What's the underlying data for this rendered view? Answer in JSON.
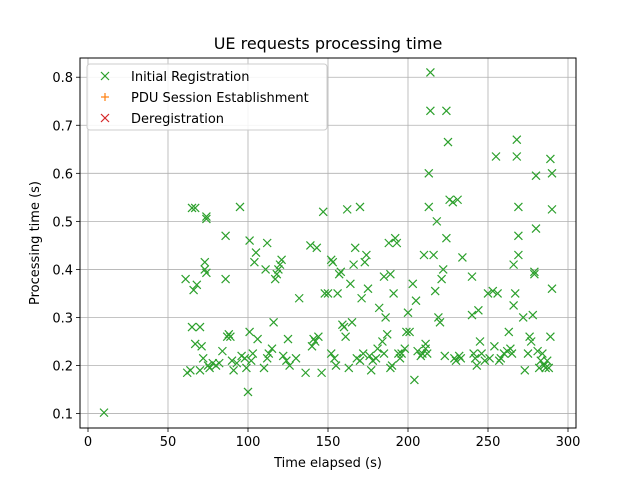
{
  "chart_data": {
    "type": "scatter",
    "title": "UE requests processing time",
    "xlabel": "Time elapsed (s)",
    "ylabel": "Processing time (s)",
    "xlim": [
      -5,
      305
    ],
    "ylim": [
      0.07,
      0.84
    ],
    "xticks": [
      0,
      50,
      100,
      150,
      200,
      250,
      300
    ],
    "yticks": [
      0.1,
      0.2,
      0.3,
      0.4,
      0.5,
      0.6,
      0.7,
      0.8
    ],
    "xtick_labels": [
      "0",
      "50",
      "100",
      "150",
      "200",
      "250",
      "300"
    ],
    "ytick_labels": [
      "0.1",
      "0.2",
      "0.3",
      "0.4",
      "0.5",
      "0.6",
      "0.7",
      "0.8"
    ],
    "grid": true,
    "legend_position": "top-left",
    "series": [
      {
        "name": "Initial Registration",
        "marker": "x",
        "color": "#2ca02c",
        "points": [
          [
            10,
            0.102
          ],
          [
            61,
            0.38
          ],
          [
            62,
            0.185
          ],
          [
            64,
            0.19
          ],
          [
            65,
            0.528
          ],
          [
            65,
            0.28
          ],
          [
            66,
            0.357
          ],
          [
            67,
            0.528
          ],
          [
            67,
            0.245
          ],
          [
            68,
            0.368
          ],
          [
            70,
            0.19
          ],
          [
            70,
            0.28
          ],
          [
            71,
            0.24
          ],
          [
            72,
            0.215
          ],
          [
            73,
            0.4
          ],
          [
            73,
            0.415
          ],
          [
            74,
            0.505
          ],
          [
            74,
            0.51
          ],
          [
            74,
            0.393
          ],
          [
            75,
            0.2
          ],
          [
            76,
            0.195
          ],
          [
            78,
            0.205
          ],
          [
            80,
            0.2
          ],
          [
            82,
            0.205
          ],
          [
            84,
            0.23
          ],
          [
            86,
            0.38
          ],
          [
            86,
            0.47
          ],
          [
            87,
            0.26
          ],
          [
            88,
            0.265
          ],
          [
            89,
            0.26
          ],
          [
            90,
            0.21
          ],
          [
            91,
            0.19
          ],
          [
            93,
            0.205
          ],
          [
            95,
            0.53
          ],
          [
            96,
            0.22
          ],
          [
            98,
            0.215
          ],
          [
            99,
            0.195
          ],
          [
            100,
            0.145
          ],
          [
            101,
            0.46
          ],
          [
            101,
            0.27
          ],
          [
            102,
            0.21
          ],
          [
            103,
            0.225
          ],
          [
            104,
            0.415
          ],
          [
            105,
            0.435
          ],
          [
            106,
            0.255
          ],
          [
            110,
            0.195
          ],
          [
            111,
            0.4
          ],
          [
            112,
            0.455
          ],
          [
            112,
            0.215
          ],
          [
            113,
            0.225
          ],
          [
            115,
            0.235
          ],
          [
            116,
            0.29
          ],
          [
            117,
            0.38
          ],
          [
            118,
            0.39
          ],
          [
            119,
            0.4
          ],
          [
            120,
            0.41
          ],
          [
            121,
            0.42
          ],
          [
            122,
            0.22
          ],
          [
            124,
            0.21
          ],
          [
            125,
            0.255
          ],
          [
            126,
            0.2
          ],
          [
            130,
            0.215
          ],
          [
            132,
            0.34
          ],
          [
            136,
            0.185
          ],
          [
            139,
            0.45
          ],
          [
            140,
            0.24
          ],
          [
            141,
            0.255
          ],
          [
            142,
            0.25
          ],
          [
            143,
            0.445
          ],
          [
            144,
            0.26
          ],
          [
            146,
            0.185
          ],
          [
            147,
            0.52
          ],
          [
            148,
            0.35
          ],
          [
            150,
            0.35
          ],
          [
            152,
            0.42
          ],
          [
            152,
            0.225
          ],
          [
            153,
            0.415
          ],
          [
            154,
            0.215
          ],
          [
            155,
            0.2
          ],
          [
            156,
            0.35
          ],
          [
            157,
            0.39
          ],
          [
            158,
            0.395
          ],
          [
            159,
            0.285
          ],
          [
            160,
            0.28
          ],
          [
            161,
            0.26
          ],
          [
            162,
            0.525
          ],
          [
            163,
            0.195
          ],
          [
            164,
            0.37
          ],
          [
            165,
            0.29
          ],
          [
            166,
            0.41
          ],
          [
            167,
            0.445
          ],
          [
            168,
            0.215
          ],
          [
            170,
            0.21
          ],
          [
            170,
            0.53
          ],
          [
            171,
            0.34
          ],
          [
            172,
            0.225
          ],
          [
            173,
            0.415
          ],
          [
            174,
            0.43
          ],
          [
            175,
            0.36
          ],
          [
            176,
            0.22
          ],
          [
            177,
            0.19
          ],
          [
            178,
            0.21
          ],
          [
            180,
            0.215
          ],
          [
            181,
            0.235
          ],
          [
            182,
            0.32
          ],
          [
            184,
            0.25
          ],
          [
            185,
            0.385
          ],
          [
            185,
            0.225
          ],
          [
            186,
            0.3
          ],
          [
            187,
            0.265
          ],
          [
            188,
            0.455
          ],
          [
            189,
            0.39
          ],
          [
            189,
            0.195
          ],
          [
            190,
            0.2
          ],
          [
            191,
            0.35
          ],
          [
            192,
            0.465
          ],
          [
            193,
            0.455
          ],
          [
            194,
            0.225
          ],
          [
            195,
            0.215
          ],
          [
            196,
            0.225
          ],
          [
            198,
            0.235
          ],
          [
            199,
            0.27
          ],
          [
            200,
            0.31
          ],
          [
            201,
            0.27
          ],
          [
            203,
            0.37
          ],
          [
            204,
            0.17
          ],
          [
            205,
            0.335
          ],
          [
            206,
            0.23
          ],
          [
            208,
            0.22
          ],
          [
            209,
            0.225
          ],
          [
            210,
            0.43
          ],
          [
            211,
            0.245
          ],
          [
            211,
            0.235
          ],
          [
            212,
            0.225
          ],
          [
            213,
            0.53
          ],
          [
            213,
            0.6
          ],
          [
            214,
            0.81
          ],
          [
            214,
            0.73
          ],
          [
            216,
            0.43
          ],
          [
            217,
            0.355
          ],
          [
            218,
            0.5
          ],
          [
            219,
            0.3
          ],
          [
            220,
            0.29
          ],
          [
            221,
            0.38
          ],
          [
            222,
            0.4
          ],
          [
            223,
            0.22
          ],
          [
            224,
            0.73
          ],
          [
            224,
            0.465
          ],
          [
            225,
            0.665
          ],
          [
            226,
            0.545
          ],
          [
            228,
            0.54
          ],
          [
            229,
            0.215
          ],
          [
            230,
            0.21
          ],
          [
            231,
            0.545
          ],
          [
            232,
            0.22
          ],
          [
            233,
            0.215
          ],
          [
            234,
            0.425
          ],
          [
            240,
            0.385
          ],
          [
            240,
            0.305
          ],
          [
            241,
            0.225
          ],
          [
            242,
            0.215
          ],
          [
            243,
            0.2
          ],
          [
            244,
            0.315
          ],
          [
            245,
            0.25
          ],
          [
            246,
            0.225
          ],
          [
            248,
            0.21
          ],
          [
            250,
            0.35
          ],
          [
            251,
            0.215
          ],
          [
            253,
            0.355
          ],
          [
            254,
            0.24
          ],
          [
            255,
            0.635
          ],
          [
            256,
            0.35
          ],
          [
            257,
            0.21
          ],
          [
            258,
            0.215
          ],
          [
            260,
            0.225
          ],
          [
            262,
            0.23
          ],
          [
            263,
            0.27
          ],
          [
            264,
            0.235
          ],
          [
            265,
            0.225
          ],
          [
            266,
            0.41
          ],
          [
            266,
            0.325
          ],
          [
            267,
            0.35
          ],
          [
            268,
            0.67
          ],
          [
            268,
            0.635
          ],
          [
            269,
            0.53
          ],
          [
            269,
            0.47
          ],
          [
            269,
            0.43
          ],
          [
            272,
            0.3
          ],
          [
            273,
            0.19
          ],
          [
            275,
            0.225
          ],
          [
            276,
            0.26
          ],
          [
            277,
            0.25
          ],
          [
            278,
            0.305
          ],
          [
            279,
            0.395
          ],
          [
            279,
            0.39
          ],
          [
            280,
            0.485
          ],
          [
            280,
            0.595
          ],
          [
            281,
            0.23
          ],
          [
            282,
            0.195
          ],
          [
            283,
            0.21
          ],
          [
            284,
            0.225
          ],
          [
            285,
            0.2
          ],
          [
            286,
            0.195
          ],
          [
            287,
            0.21
          ],
          [
            288,
            0.195
          ],
          [
            289,
            0.26
          ],
          [
            289,
            0.63
          ],
          [
            290,
            0.6
          ],
          [
            290,
            0.525
          ],
          [
            290,
            0.36
          ]
        ]
      },
      {
        "name": "PDU Session Establishment",
        "marker": "+",
        "color": "#ff7f0e",
        "points": []
      },
      {
        "name": "Deregistration",
        "marker": "x",
        "color": "#d62728",
        "points": []
      }
    ]
  }
}
